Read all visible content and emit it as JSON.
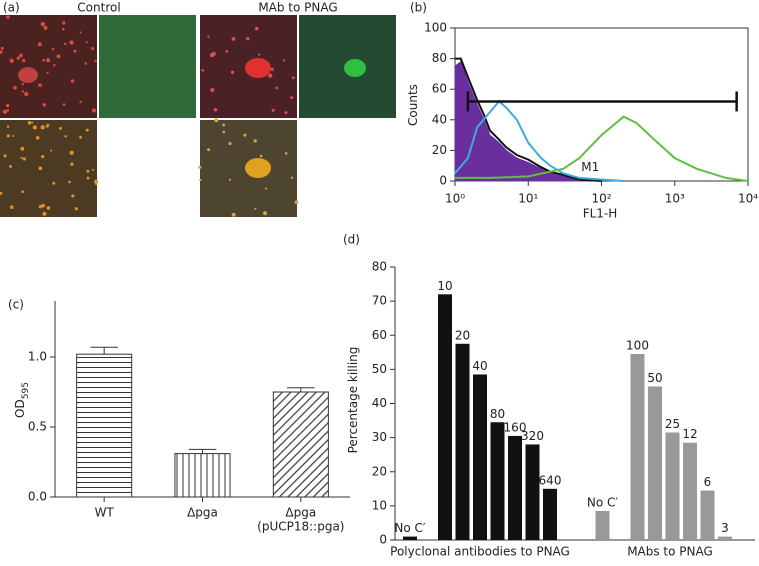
{
  "images": {
    "panel": "(a)",
    "titles": [
      "Control",
      "MAb to PNAG"
    ]
  },
  "chart_data": [
    {
      "type": "line",
      "panel": "(b)",
      "x_label": "FL1-H",
      "y_label": "Counts",
      "xscale": "log",
      "xlim": [
        1,
        10000
      ],
      "ylim": [
        0,
        100
      ],
      "xticks": [
        {
          "value": 1,
          "label": "10⁰"
        },
        {
          "value": 10,
          "label": "10¹"
        },
        {
          "value": 100,
          "label": "10²"
        },
        {
          "value": 1000,
          "label": "10³"
        },
        {
          "value": 10000,
          "label": "10⁴"
        }
      ],
      "yticks": [
        0,
        20,
        40,
        60,
        80,
        100
      ],
      "marker": {
        "label": "M1",
        "x": [
          1.5,
          7000
        ],
        "y": 52
      },
      "series": [
        {
          "color": "#6a2f9e",
          "fill": true,
          "x": [
            1,
            1.2,
            1.5,
            2,
            2.5,
            3,
            4,
            5,
            7,
            10,
            15,
            20,
            30,
            50,
            100
          ],
          "values": [
            75,
            78,
            65,
            50,
            40,
            30,
            25,
            20,
            15,
            12,
            8,
            5,
            3,
            1,
            0
          ]
        },
        {
          "color": "#111111",
          "fill": false,
          "x": [
            1,
            1.2,
            1.5,
            2,
            2.5,
            3,
            4,
            5,
            7,
            10,
            15,
            20,
            30,
            50,
            100
          ],
          "values": [
            80,
            80,
            68,
            53,
            43,
            33,
            27,
            22,
            17,
            14,
            9,
            6,
            4,
            1,
            0
          ]
        },
        {
          "color": "#3fa9e0",
          "fill": false,
          "x": [
            1,
            1.5,
            2,
            3,
            4,
            5,
            7,
            10,
            15,
            20,
            30,
            50,
            100,
            200
          ],
          "values": [
            5,
            15,
            35,
            45,
            52,
            48,
            40,
            25,
            15,
            10,
            5,
            2,
            1,
            0
          ]
        },
        {
          "color": "#5cc040",
          "fill": false,
          "x": [
            1,
            3,
            10,
            30,
            50,
            100,
            200,
            300,
            500,
            1000,
            2000,
            5000,
            10000
          ],
          "values": [
            2,
            2,
            3,
            8,
            15,
            30,
            42,
            38,
            28,
            15,
            8,
            2,
            0
          ]
        }
      ]
    },
    {
      "type": "bar",
      "panel": "(c)",
      "y_label": "OD",
      "y_label_sub": "595",
      "categories": [
        "WT",
        "Δpga",
        [
          "Δpga",
          "(pUCP18::pga)"
        ]
      ],
      "values": [
        1.02,
        0.31,
        0.75
      ],
      "errors": [
        0.05,
        0.03,
        0.03
      ],
      "patterns": [
        "horizontal",
        "vertical",
        "diagonal"
      ],
      "ylim": [
        0,
        1.4
      ],
      "yticks": [
        {
          "value": 0,
          "label": "0.0"
        },
        {
          "value": 0.5,
          "label": "0.5"
        },
        {
          "value": 1,
          "label": "1.0"
        }
      ]
    },
    {
      "type": "bar",
      "panel": "(d)",
      "y_label": "Percentage killing",
      "categories": [
        "No C′",
        null,
        "10",
        "20",
        "40",
        "80",
        "160",
        "320",
        "640",
        null,
        null,
        "No C′",
        null,
        "100",
        "50",
        "25",
        "12",
        "6",
        "3"
      ],
      "series": [
        {
          "color": "#111111",
          "values": [
            1,
            null,
            72,
            57.5,
            48.5,
            34.5,
            30.5,
            28,
            15,
            null,
            null,
            null,
            null,
            null,
            null,
            null,
            null,
            null,
            null
          ]
        },
        {
          "color": "#999999",
          "values": [
            null,
            null,
            null,
            null,
            null,
            null,
            null,
            null,
            null,
            null,
            null,
            8.5,
            null,
            54.5,
            45,
            31.5,
            28.5,
            14.5,
            1
          ]
        }
      ],
      "groups": [
        {
          "label": "Polyclonal antibodies to PNAG"
        },
        {
          "label": "MAbs to PNAG"
        }
      ],
      "ylim": [
        0,
        80
      ],
      "yticks": [
        0,
        10,
        20,
        30,
        40,
        50,
        60,
        70,
        80
      ]
    }
  ]
}
